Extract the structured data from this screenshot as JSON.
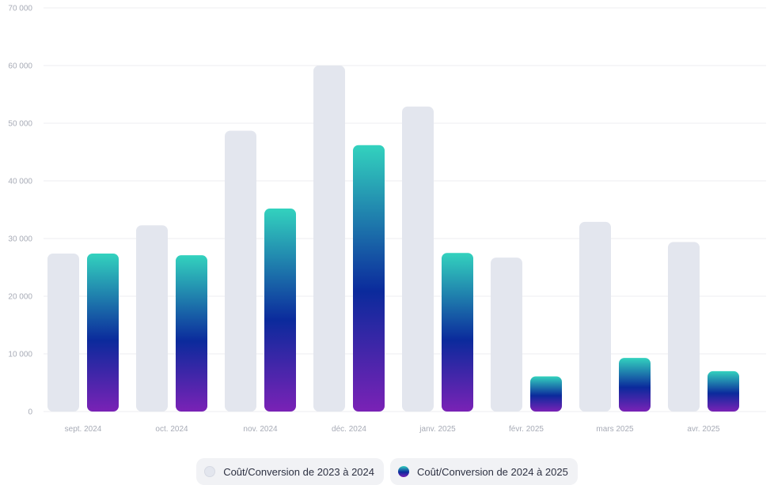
{
  "chart_data": {
    "type": "bar",
    "title": "",
    "xlabel": "",
    "ylabel": "",
    "ylim": [
      0,
      70000
    ],
    "yticks": [
      "0",
      "10 000",
      "20 000",
      "30 000",
      "40 000",
      "50 000",
      "60 000",
      "70 000"
    ],
    "ytick_values": [
      0,
      10000,
      20000,
      30000,
      40000,
      50000,
      60000,
      70000
    ],
    "grid": true,
    "legend_position": "bottom-center",
    "categories": [
      "sept. 2024",
      "oct. 2024",
      "nov. 2024",
      "déc. 2024",
      "janv. 2025",
      "févr. 2025",
      "mars 2025",
      "avr. 2025"
    ],
    "series": [
      {
        "name": "Coût/Conversion de 2023 à 2024",
        "values": [
          27400,
          32300,
          48700,
          60000,
          52900,
          26700,
          32900,
          29400
        ],
        "color": "#e3e6ee"
      },
      {
        "name": "Coût/Conversion de 2024 à 2025",
        "values": [
          27400,
          27100,
          35200,
          46200,
          27500,
          6100,
          9300,
          7000
        ],
        "gradient": [
          "#33d2be",
          "#0b2a9c",
          "#7a22b6"
        ]
      }
    ]
  }
}
